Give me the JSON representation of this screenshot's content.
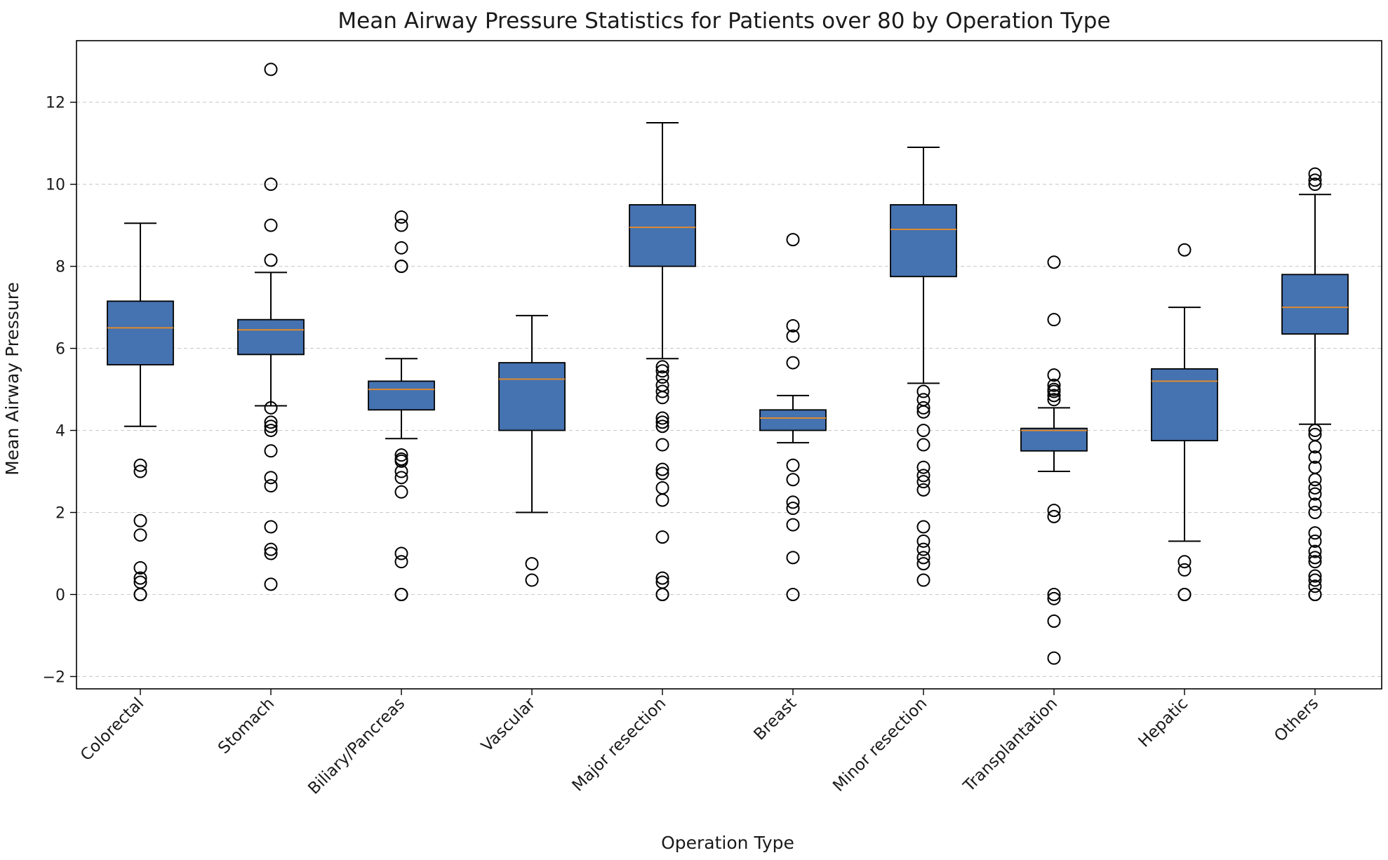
{
  "chart_data": {
    "type": "boxplot",
    "title": "Mean Airway Pressure Statistics for Patients over 80 by Operation Type",
    "xlabel": "Operation Type",
    "ylabel": "Mean Airway Pressure",
    "ylim": [
      -2.3,
      13.5
    ],
    "yticks": [
      -2,
      0,
      2,
      4,
      6,
      8,
      10,
      12
    ],
    "ytick_labels": [
      "−2",
      "0",
      "2",
      "4",
      "6",
      "8",
      "10",
      "12"
    ],
    "grid": {
      "axis": "y",
      "style": "dashed"
    },
    "colors": {
      "box_fill": "#4572b0",
      "median": "#e08a2c",
      "edge": "#000000",
      "grid": "#cccccc"
    },
    "categories": [
      "Colorectal",
      "Stomach",
      "Biliary/Pancreas",
      "Vascular",
      "Major resection",
      "Breast",
      "Minor resection",
      "Transplantation",
      "Hepatic",
      "Others"
    ],
    "boxes": [
      {
        "category": "Colorectal",
        "whisker_low": 4.1,
        "q1": 5.6,
        "median": 6.5,
        "q3": 7.15,
        "whisker_high": 9.05,
        "outliers": [
          3.15,
          3.0,
          1.8,
          1.45,
          0.65,
          0.4,
          0.3,
          0.0,
          0.0
        ]
      },
      {
        "category": "Stomach",
        "whisker_low": 4.6,
        "q1": 5.85,
        "median": 6.45,
        "q3": 6.7,
        "whisker_high": 7.85,
        "outliers": [
          12.8,
          10.0,
          9.0,
          8.15,
          4.55,
          4.2,
          4.1,
          4.0,
          3.5,
          2.85,
          2.65,
          1.65,
          1.1,
          1.0,
          0.25
        ]
      },
      {
        "category": "Biliary/Pancreas",
        "whisker_low": 3.8,
        "q1": 4.5,
        "median": 5.0,
        "q3": 5.2,
        "whisker_high": 5.75,
        "outliers": [
          9.2,
          9.0,
          8.45,
          8.0,
          8.0,
          3.4,
          3.3,
          3.25,
          3.0,
          2.85,
          2.5,
          1.0,
          0.8,
          0.0,
          0.0
        ]
      },
      {
        "category": "Vascular",
        "whisker_low": 2.0,
        "q1": 4.0,
        "median": 5.25,
        "q3": 5.65,
        "whisker_high": 6.8,
        "outliers": [
          0.75,
          0.35
        ]
      },
      {
        "category": "Major resection",
        "whisker_low": 5.75,
        "q1": 8.0,
        "median": 8.95,
        "q3": 9.5,
        "whisker_high": 11.5,
        "outliers": [
          5.55,
          5.45,
          5.3,
          5.1,
          4.95,
          4.8,
          4.3,
          4.2,
          4.1,
          3.65,
          3.05,
          2.95,
          2.6,
          2.3,
          1.4,
          0.4,
          0.3,
          0.0,
          0.0
        ]
      },
      {
        "category": "Breast",
        "whisker_low": 3.7,
        "q1": 4.0,
        "median": 4.3,
        "q3": 4.5,
        "whisker_high": 4.85,
        "outliers": [
          8.65,
          6.55,
          6.3,
          5.65,
          3.15,
          2.8,
          2.25,
          2.1,
          1.7,
          0.9,
          0.0
        ]
      },
      {
        "category": "Minor resection",
        "whisker_low": 5.15,
        "q1": 7.75,
        "median": 8.9,
        "q3": 9.5,
        "whisker_high": 10.9,
        "outliers": [
          4.95,
          4.75,
          4.55,
          4.45,
          4.0,
          3.65,
          3.1,
          2.9,
          2.75,
          2.55,
          1.65,
          1.3,
          1.1,
          0.9,
          0.75,
          0.35
        ]
      },
      {
        "category": "Transplantation",
        "whisker_low": 3.0,
        "q1": 3.5,
        "median": 4.0,
        "q3": 4.05,
        "whisker_high": 4.55,
        "outliers": [
          8.1,
          6.7,
          5.35,
          5.1,
          5.0,
          4.95,
          4.85,
          4.75,
          2.05,
          1.9,
          0.0,
          -0.1,
          -0.65,
          -1.55
        ]
      },
      {
        "category": "Hepatic",
        "whisker_low": 1.3,
        "q1": 3.75,
        "median": 5.2,
        "q3": 5.5,
        "whisker_high": 7.0,
        "outliers": [
          8.4,
          0.8,
          0.6,
          0.0,
          0.0
        ]
      },
      {
        "category": "Others",
        "whisker_low": 4.15,
        "q1": 6.35,
        "median": 7.0,
        "q3": 7.8,
        "whisker_high": 9.75,
        "outliers": [
          10.25,
          10.1,
          10.0,
          4.0,
          3.9,
          3.6,
          3.35,
          3.1,
          2.8,
          2.6,
          2.45,
          2.2,
          2.0,
          1.5,
          1.3,
          1.05,
          0.9,
          0.8,
          0.45,
          0.35,
          0.2,
          0.0,
          0.0
        ]
      }
    ]
  }
}
